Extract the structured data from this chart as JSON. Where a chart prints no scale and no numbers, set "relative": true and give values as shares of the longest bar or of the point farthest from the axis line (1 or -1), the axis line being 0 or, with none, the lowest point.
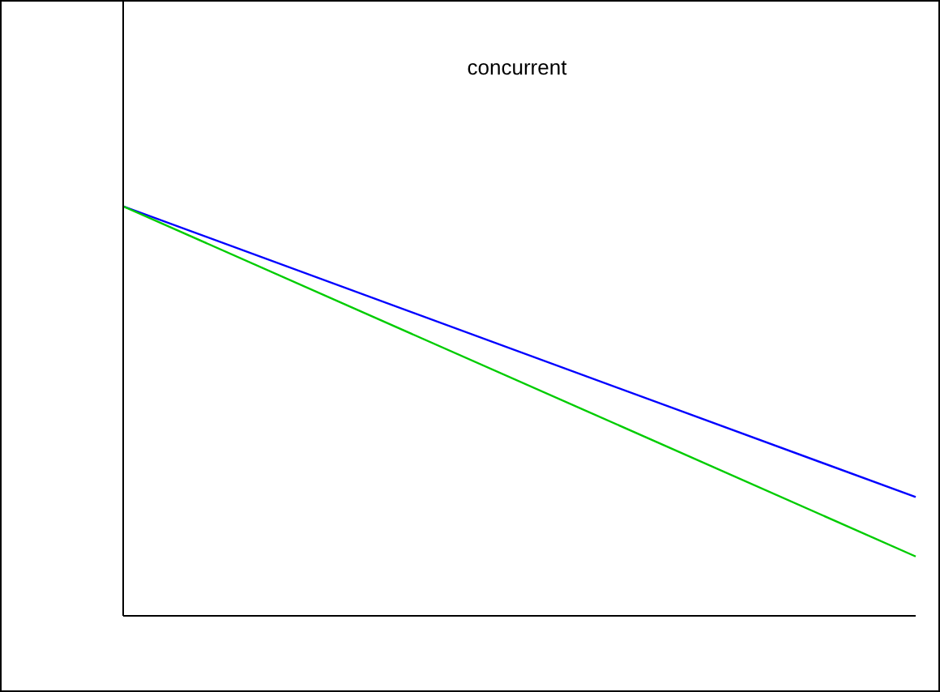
{
  "chart_data": {
    "type": "line",
    "title": "concurrent",
    "relative": true,
    "categories": [
      null,
      null
    ],
    "series": [
      {
        "color": "#0000ff",
        "values": [
          1,
          0.29
        ]
      },
      {
        "color": "#00cc00",
        "values": [
          1,
          0.145
        ]
      }
    ],
    "marker": "none",
    "line_style": "solid"
  }
}
